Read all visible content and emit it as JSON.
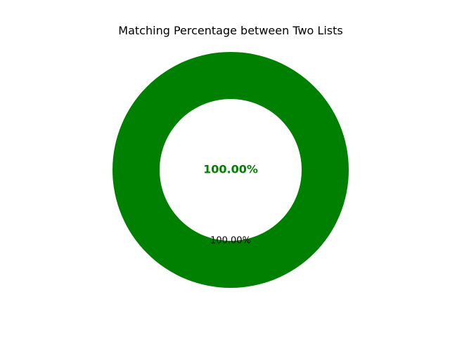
{
  "chart_data": {
    "type": "pie",
    "title": "Matching Percentage between Two Lists",
    "slices": [
      {
        "value": 100.0,
        "label": "100.00%",
        "color": "#008000"
      }
    ],
    "center_label": "100.00%",
    "center_label_color": "#008000",
    "donut": true,
    "legend": "none",
    "grid": false
  }
}
